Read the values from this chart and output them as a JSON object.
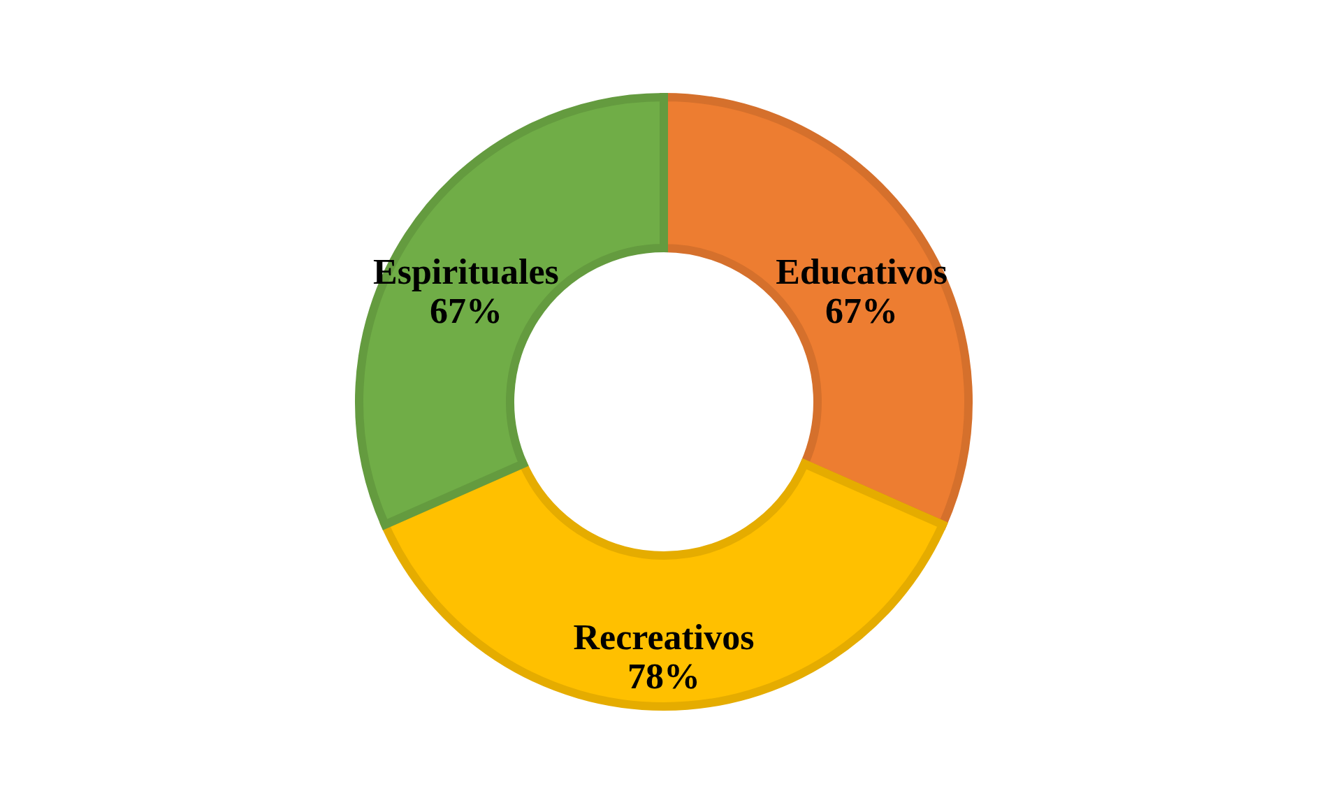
{
  "chart_data": {
    "type": "donut",
    "categories": [
      "Educativos",
      "Recreativos",
      "Espirituales"
    ],
    "values": [
      67,
      78,
      67
    ],
    "value_labels": [
      "67%",
      "78%",
      "67%"
    ],
    "colors": [
      "#ed7d31",
      "#ffc000",
      "#70ad47"
    ]
  }
}
